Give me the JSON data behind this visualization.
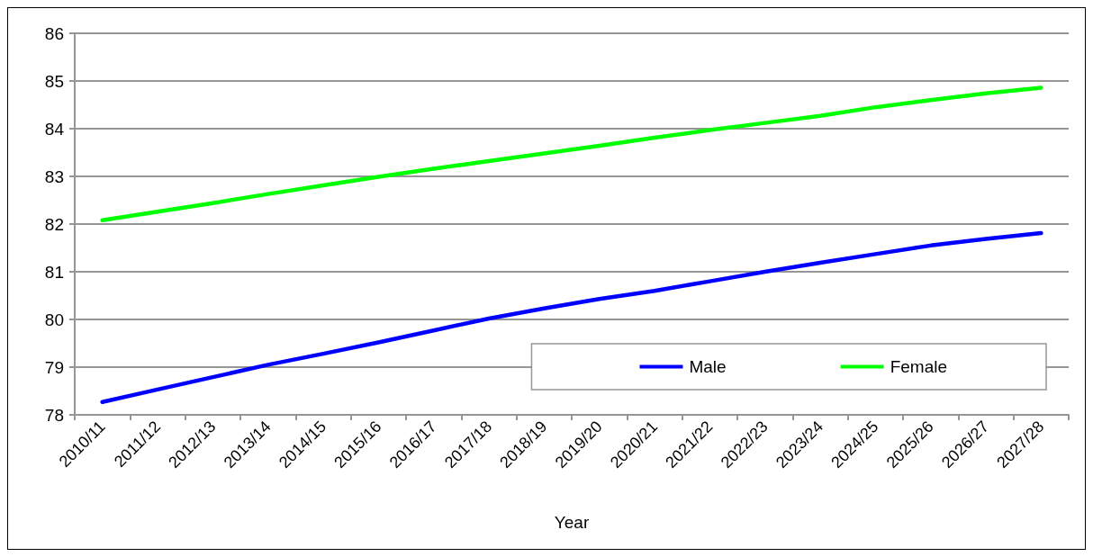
{
  "chart_data": {
    "type": "line",
    "xlabel": "Year",
    "categories": [
      "2010/11",
      "2011/12",
      "2012/13",
      "2013/14",
      "2014/15",
      "2015/16",
      "2016/17",
      "2017/18",
      "2018/19",
      "2019/20",
      "2020/21",
      "2021/22",
      "2022/23",
      "2023/24",
      "2024/25",
      "2025/26",
      "2026/27",
      "2027/28"
    ],
    "series": [
      {
        "name": "Male",
        "color": "#0000ff",
        "values": [
          78.27,
          78.53,
          78.79,
          79.05,
          79.28,
          79.52,
          79.77,
          80.02,
          80.23,
          80.43,
          80.6,
          80.8,
          81.0,
          81.19,
          81.37,
          81.55,
          81.69,
          81.81
        ]
      },
      {
        "name": "Female",
        "color": "#00ff00",
        "values": [
          82.08,
          82.26,
          82.44,
          82.63,
          82.81,
          82.99,
          83.16,
          83.32,
          83.48,
          83.64,
          83.81,
          83.97,
          84.12,
          84.27,
          84.45,
          84.6,
          84.74,
          84.86
        ]
      }
    ],
    "ylim": [
      78,
      86
    ],
    "yticks": [
      78,
      79,
      80,
      81,
      82,
      83,
      84,
      85,
      86
    ],
    "grid": "y",
    "legend": "bottom right",
    "marker": "none",
    "line_style": "solid"
  }
}
